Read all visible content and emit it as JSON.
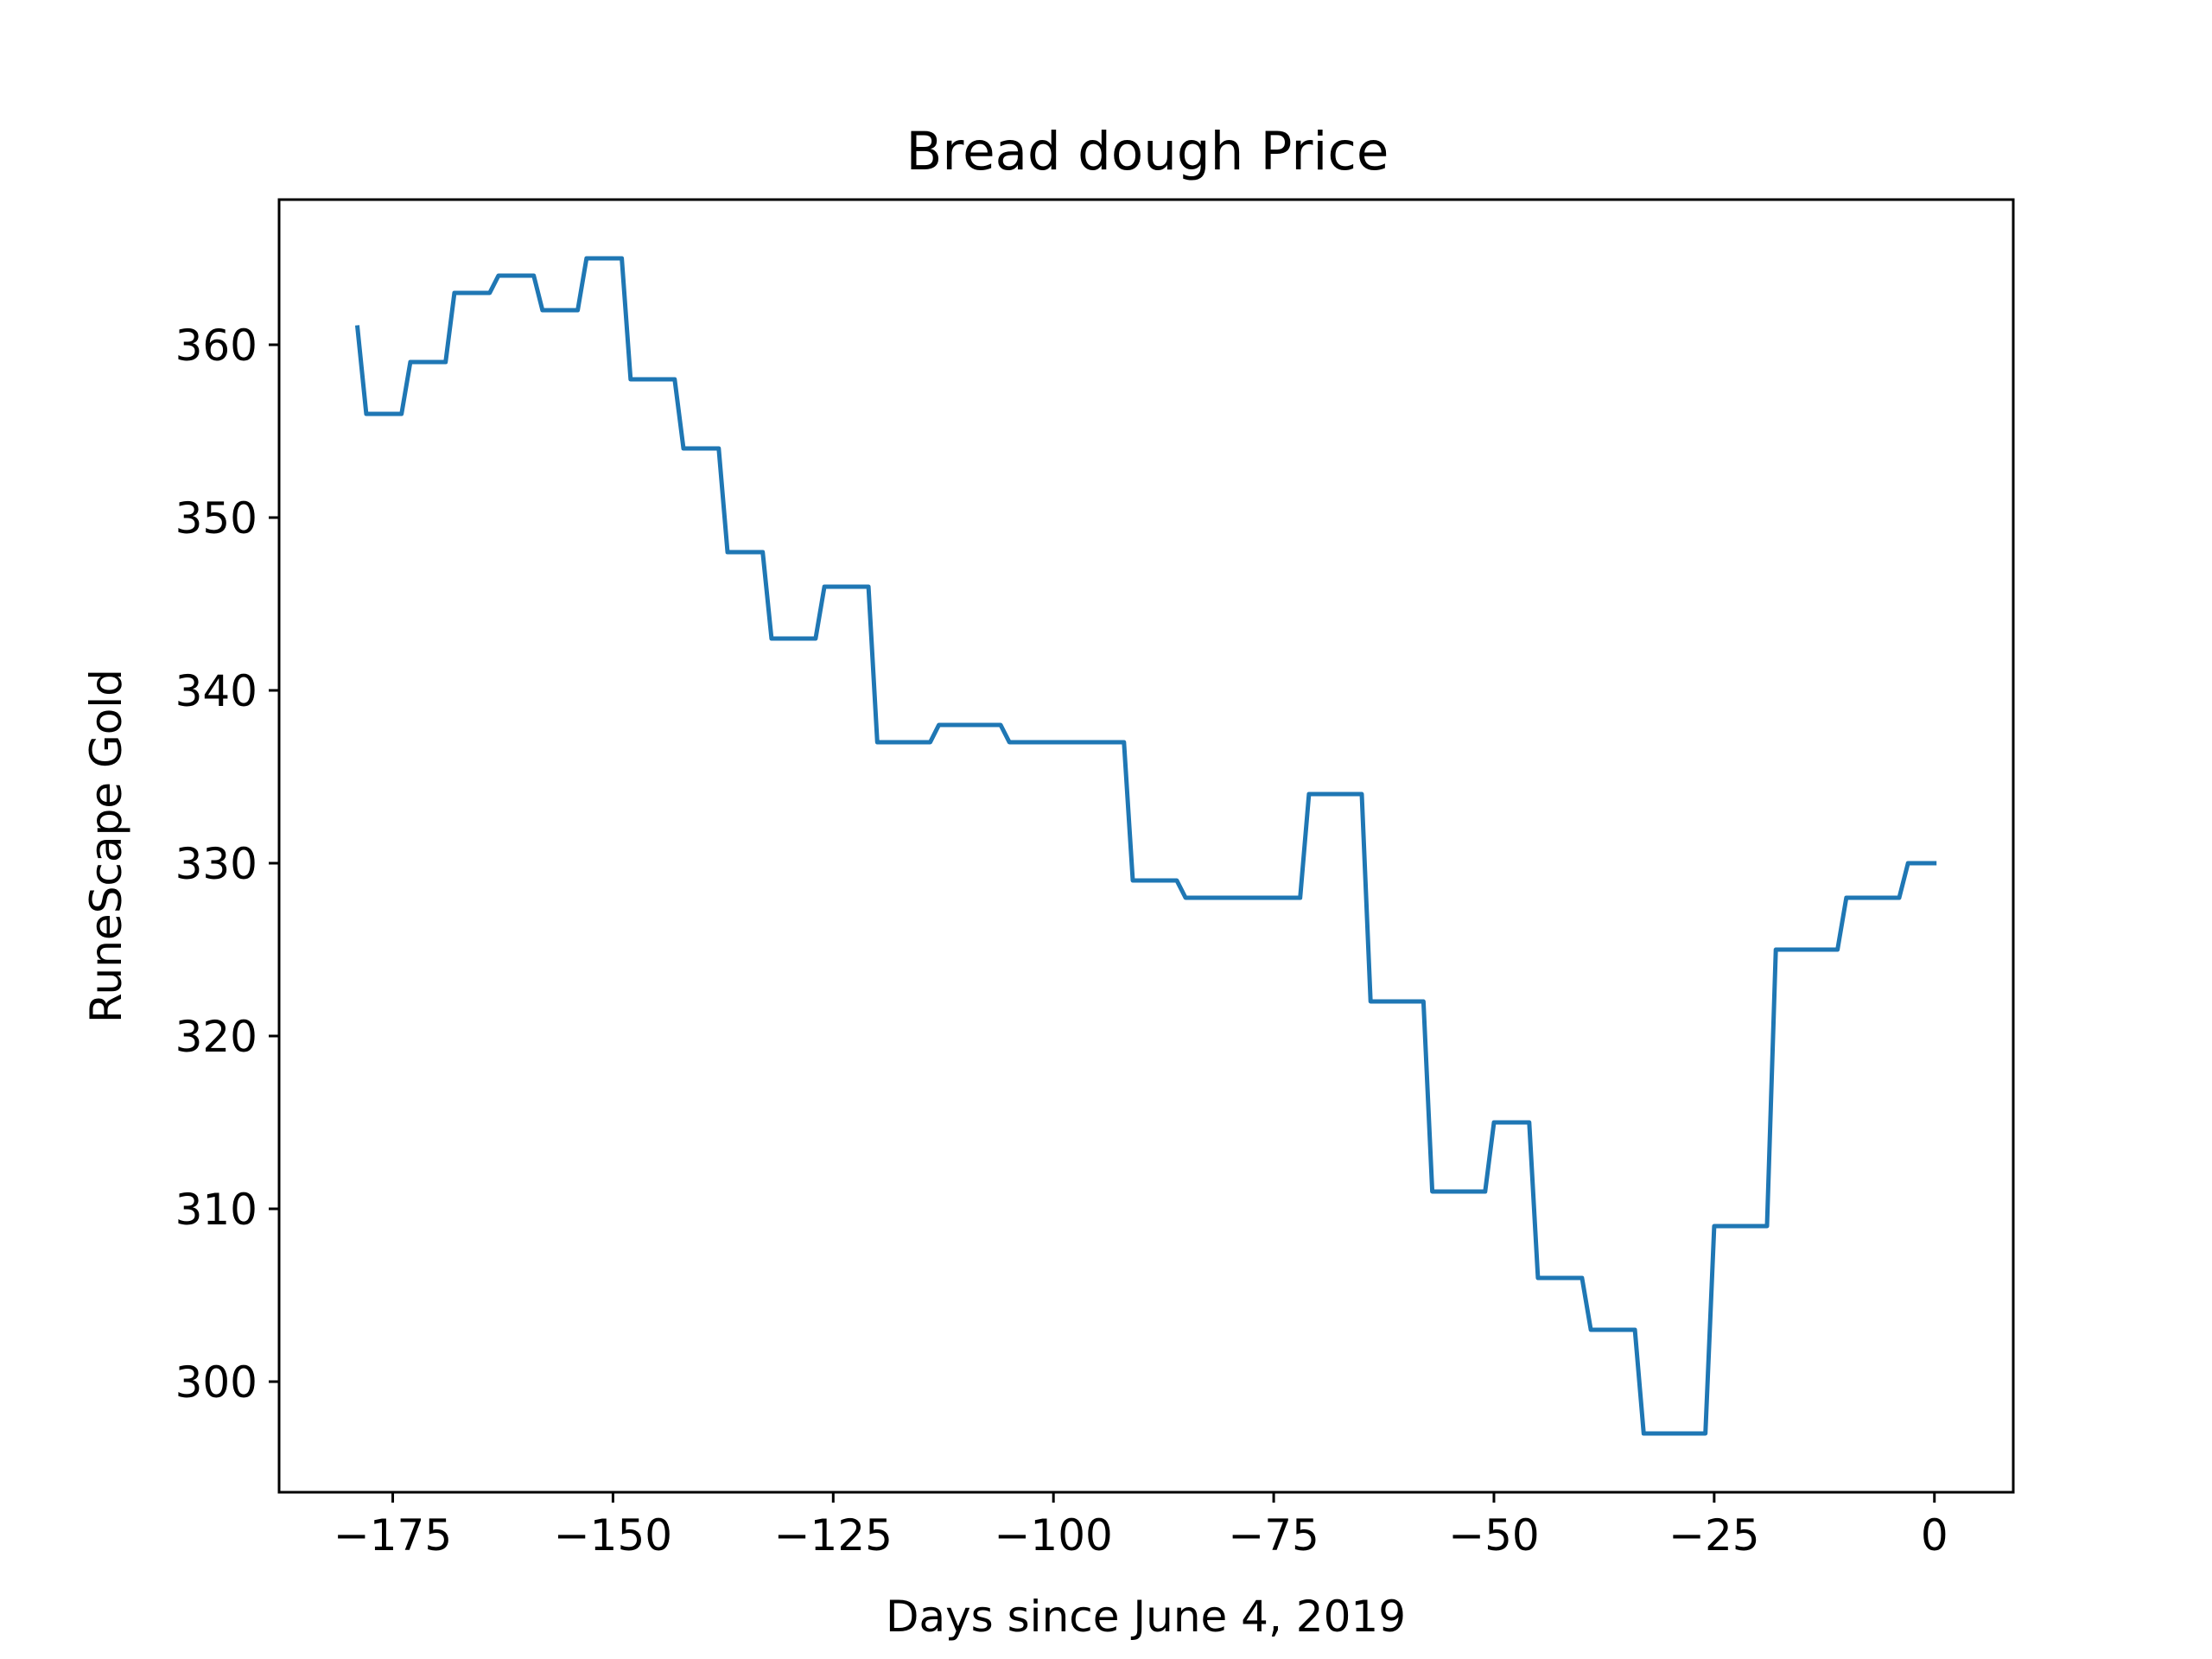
{
  "chart_data": {
    "type": "line",
    "title": "Bread dough Price",
    "xlabel": "Days since June 4, 2019",
    "ylabel": "RuneScape Gold",
    "xlim": [
      -187.9,
      8.95
    ],
    "ylim": [
      293.6,
      368.4
    ],
    "xticks": [
      -175,
      -150,
      -125,
      -100,
      -75,
      -50,
      -25,
      0
    ],
    "xtick_labels": [
      "−175",
      "−150",
      "−125",
      "−100",
      "−75",
      "−50",
      "−25",
      "0"
    ],
    "yticks": [
      300,
      310,
      320,
      330,
      340,
      350,
      360
    ],
    "ytick_labels": [
      "300",
      "310",
      "320",
      "330",
      "340",
      "350",
      "360"
    ],
    "grid": false,
    "legend": null,
    "line_color": "#1f77b4",
    "series": [
      {
        "x": [
          -179,
          -178,
          -174,
          -173,
          -169,
          -168,
          -164,
          -163,
          -159,
          -158,
          -154,
          -153,
          -149,
          -148,
          -143,
          -142,
          -138,
          -137,
          -133,
          -132,
          -127,
          -126,
          -121,
          -120,
          -114,
          -113,
          -106,
          -105,
          -92,
          -91,
          -86,
          -85,
          -72,
          -71,
          -65,
          -64,
          -58,
          -57,
          -51,
          -50,
          -46,
          -45,
          -40,
          -39,
          -34,
          -33,
          -26,
          -25,
          -19,
          -18,
          -11,
          -10,
          -4,
          -3,
          0
        ],
        "y": [
          361,
          356,
          356,
          359,
          359,
          363,
          363,
          364,
          364,
          362,
          362,
          365,
          365,
          358,
          358,
          354,
          354,
          348,
          348,
          343,
          343,
          346,
          346,
          337,
          337,
          338,
          338,
          337,
          337,
          329,
          329,
          328,
          328,
          334,
          334,
          322,
          322,
          311,
          311,
          315,
          315,
          306,
          306,
          303,
          303,
          297,
          297,
          309,
          309,
          325,
          325,
          328,
          328,
          330,
          330
        ]
      }
    ]
  }
}
